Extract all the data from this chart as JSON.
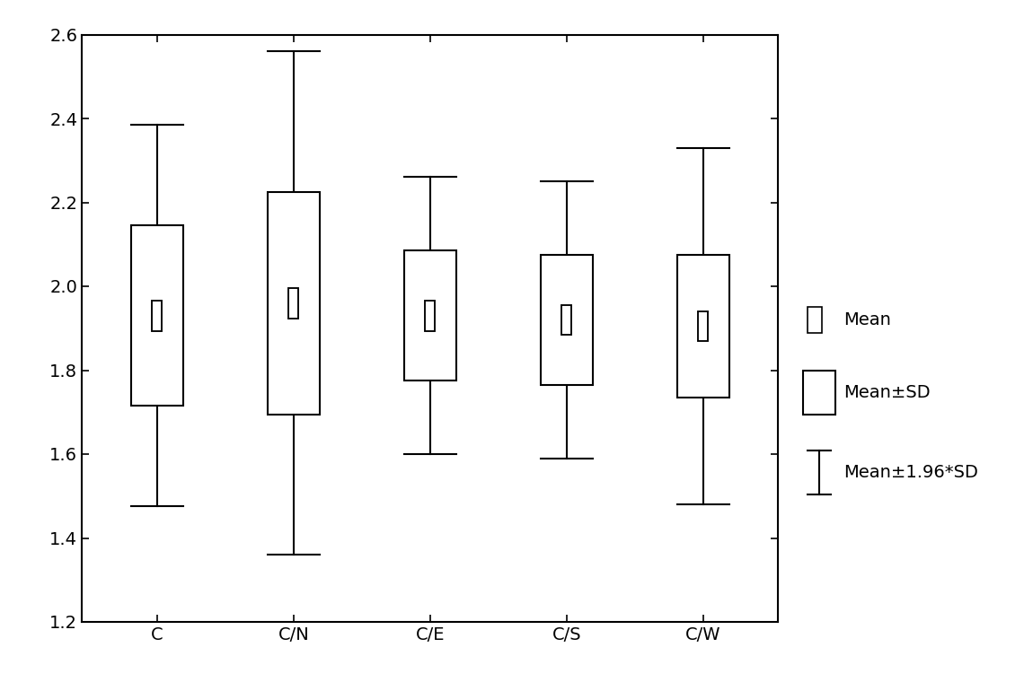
{
  "categories": [
    "C",
    "C/N",
    "C/E",
    "C/S",
    "C/W"
  ],
  "means": [
    1.93,
    1.96,
    1.93,
    1.92,
    1.905
  ],
  "sd": [
    0.215,
    0.265,
    0.155,
    0.155,
    0.17
  ],
  "sd196": [
    0.455,
    0.6,
    0.33,
    0.33,
    0.425
  ],
  "ylim": [
    1.2,
    2.6
  ],
  "yticks": [
    1.2,
    1.4,
    1.6,
    1.8,
    2.0,
    2.2,
    2.4,
    2.6
  ],
  "box_facecolor": "#ffffff",
  "box_edgecolor": "#000000",
  "box_width": 0.38,
  "linewidth": 1.5,
  "legend_fontsize": 14,
  "tick_fontsize": 14,
  "background_color": "#ffffff"
}
